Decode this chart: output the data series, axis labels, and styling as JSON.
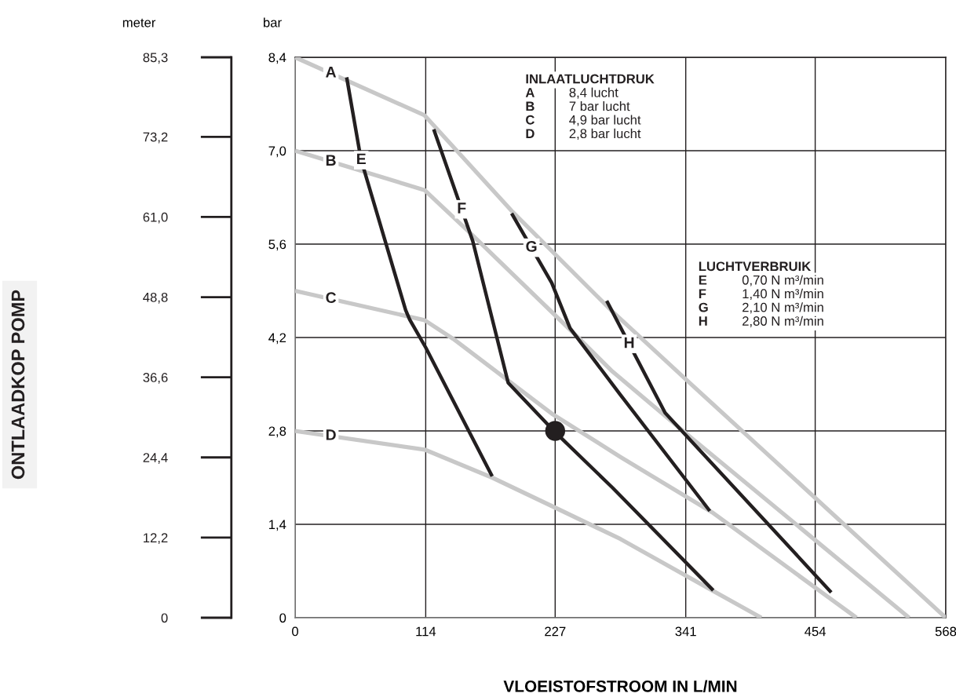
{
  "chart_data": {
    "type": "line",
    "xlabel": "VLOEISTOFSTROOM IN L/MIN",
    "ylabel": "bar",
    "y2label": "meter",
    "annotations": [
      "INLAATLUCHTDRUK",
      "8,4 lucht",
      "7 bar lucht",
      "4,9 bar lucht",
      "2,8 bar lucht",
      "LUCHTVERBRUIK",
      "0,70 N m³/min",
      "1,40 N m³/min",
      "2,10 N m³/min",
      "2,80 N m³/min",
      "ONTLAADKOP POMP"
    ],
    "xlim": [
      0,
      568
    ],
    "xticks": [
      0,
      114,
      227,
      341,
      454,
      568
    ],
    "ylim": [
      0,
      8.4
    ],
    "yticks": [
      0,
      {
        "value": 1.4,
        "label": "1,4"
      },
      {
        "value": 2.8,
        "label": "2,8"
      },
      {
        "value": 4.2,
        "label": "4,2"
      },
      {
        "value": 5.6,
        "label": "5,6"
      },
      {
        "value": 7.0,
        "label": "7,0"
      },
      {
        "value": 8.4,
        "label": "8,4"
      }
    ],
    "y2lim": [
      0,
      85.3
    ],
    "y2ticks": [
      0,
      {
        "value": 12.2,
        "label": "12,2"
      },
      {
        "value": 24.4,
        "label": "24,4"
      },
      {
        "value": 36.6,
        "label": "36,6"
      },
      {
        "value": 48.8,
        "label": "48,8"
      },
      {
        "value": 61.0,
        "label": "61,0"
      },
      {
        "value": 73.2,
        "label": "73,2"
      },
      {
        "value": 85.3,
        "label": "85,3"
      }
    ],
    "grid": true,
    "marker": "none",
    "line_style": "solid",
    "series": [
      {
        "name": "A",
        "color": "#c8c8c8",
        "x": [
          0,
          113,
          190,
          277,
          340,
          568
        ],
        "values": [
          8.4,
          7.53,
          6.08,
          4.59,
          3.59,
          0
        ]
      },
      {
        "name": "B",
        "color": "#c8c8c8",
        "x": [
          0,
          113,
          155,
          247,
          277,
          340,
          536
        ],
        "values": [
          7.0,
          6.41,
          5.73,
          4.2,
          3.69,
          2.78,
          0
        ]
      },
      {
        "name": "C",
        "color": "#c8c8c8",
        "x": [
          0,
          113,
          138,
          224,
          284,
          364,
          490
        ],
        "values": [
          4.9,
          4.46,
          4.18,
          3.06,
          2.41,
          1.58,
          0
        ]
      },
      {
        "name": "D",
        "color": "#c8c8c8",
        "x": [
          0,
          113,
          172,
          227,
          284,
          364,
          407
        ],
        "values": [
          2.8,
          2.52,
          2.1,
          1.65,
          1.18,
          0.41,
          0
        ]
      },
      {
        "name": "E",
        "color": "#231f20",
        "x": [
          45,
          57.5,
          96.5,
          100,
          114,
          172
        ],
        "values": [
          8.1,
          6.87,
          4.61,
          4.47,
          4.05,
          2.12
        ]
      },
      {
        "name": "F",
        "color": "#231f20",
        "x": [
          121,
          155,
          186,
          227,
          277,
          365
        ],
        "values": [
          7.32,
          5.65,
          3.52,
          2.78,
          1.95,
          0.41
        ]
      },
      {
        "name": "G",
        "color": "#231f20",
        "x": [
          189,
          224,
          240,
          284,
          362
        ],
        "values": [
          6.06,
          5.02,
          4.34,
          3.34,
          1.6
        ]
      },
      {
        "name": "H",
        "color": "#231f20",
        "x": [
          272,
          323,
          468
        ],
        "values": [
          4.75,
          3.07,
          0.38
        ]
      },
      {
        "type": "scatter",
        "marker": "circle",
        "color": "#231f20",
        "x": [
          227
        ],
        "values": [
          2.8
        ]
      }
    ]
  }
}
